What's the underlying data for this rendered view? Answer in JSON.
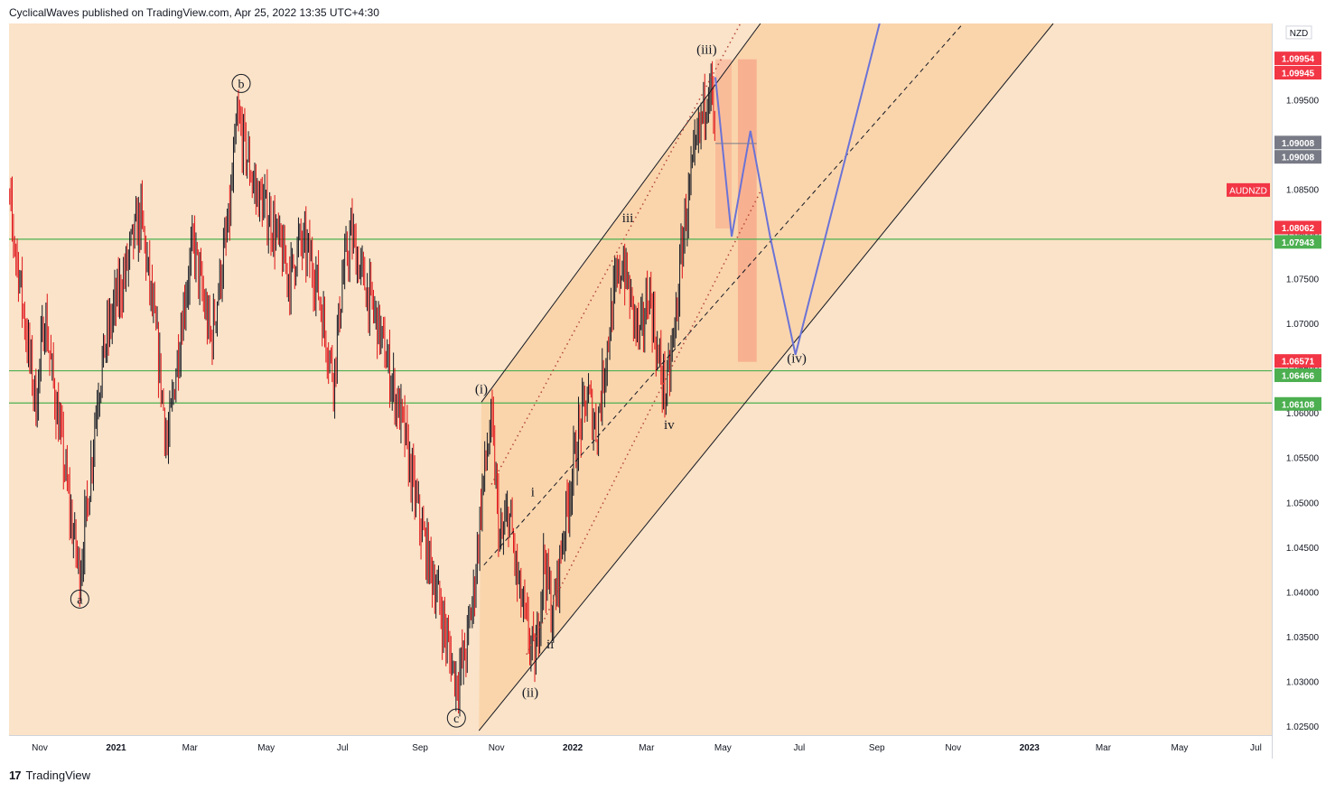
{
  "header": {
    "text": "CyclicalWaves published on TradingView.com, Apr 25, 2022 13:35 UTC+4:30"
  },
  "footer": {
    "logo": "17",
    "brand": "TradingView"
  },
  "colors": {
    "background": "#fae3c8",
    "channel_fill": "#f9d2a7",
    "box_fill": "#f7a88a",
    "candle_up": "#131722",
    "candle_down": "#e0151a",
    "level_line": "#4caf50",
    "projection_line": "#6b73d6",
    "red_tag": "#f23645",
    "green_tag": "#4caf50",
    "gray_tag": "#787b86"
  },
  "chart_data": {
    "type": "candlestick",
    "symbol": "AUDNZD",
    "currency": "NZD",
    "ylim": [
      1.024,
      1.1035
    ],
    "y_ticks": [
      1.025,
      1.03,
      1.035,
      1.04,
      1.045,
      1.05,
      1.055,
      1.06,
      1.065,
      1.07,
      1.075,
      1.08,
      1.085,
      1.09,
      1.095
    ],
    "y_tick_labels": [
      "1.02500",
      "1.03000",
      "1.03500",
      "1.04000",
      "1.04500",
      "1.05000",
      "1.05500",
      "1.06000",
      "1.06500",
      "1.07000",
      "1.07500",
      "1.08000",
      "1.08500",
      "1.09000",
      "1.09500"
    ],
    "x_ticks": [
      {
        "label": "Nov",
        "date": "2020-11-01"
      },
      {
        "label": "2021",
        "date": "2021-01-01"
      },
      {
        "label": "Mar",
        "date": "2021-03-01"
      },
      {
        "label": "May",
        "date": "2021-05-01"
      },
      {
        "label": "Jul",
        "date": "2021-07-01"
      },
      {
        "label": "Sep",
        "date": "2021-09-01"
      },
      {
        "label": "Nov",
        "date": "2021-11-01"
      },
      {
        "label": "2022",
        "date": "2022-01-01"
      },
      {
        "label": "Mar",
        "date": "2022-03-01"
      },
      {
        "label": "May",
        "date": "2022-05-01"
      },
      {
        "label": "Jul",
        "date": "2022-07-01"
      },
      {
        "label": "Sep",
        "date": "2022-09-01"
      },
      {
        "label": "Nov",
        "date": "2022-11-01"
      },
      {
        "label": "2023",
        "date": "2023-01-01"
      },
      {
        "label": "Mar",
        "date": "2023-03-01"
      },
      {
        "label": "May",
        "date": "2023-05-01"
      },
      {
        "label": "Jul",
        "date": "2023-07-01"
      }
    ],
    "price_path": [
      [
        "2020-10-01",
        1.089
      ],
      [
        "2020-10-08",
        1.083
      ],
      [
        "2020-10-15",
        1.076
      ],
      [
        "2020-10-22",
        1.068
      ],
      [
        "2020-10-29",
        1.061
      ],
      [
        "2020-11-05",
        1.071
      ],
      [
        "2020-11-12",
        1.063
      ],
      [
        "2020-11-19",
        1.056
      ],
      [
        "2020-11-26",
        1.048
      ],
      [
        "2020-12-03",
        1.042
      ],
      [
        "2020-12-10",
        1.051
      ],
      [
        "2020-12-17",
        1.062
      ],
      [
        "2020-12-24",
        1.068
      ],
      [
        "2020-12-31",
        1.072
      ],
      [
        "2021-01-07",
        1.075
      ],
      [
        "2021-01-14",
        1.079
      ],
      [
        "2021-01-21",
        1.082
      ],
      [
        "2021-01-28",
        1.074
      ],
      [
        "2021-02-04",
        1.066
      ],
      [
        "2021-02-11",
        1.056
      ],
      [
        "2021-02-18",
        1.065
      ],
      [
        "2021-02-25",
        1.073
      ],
      [
        "2021-03-04",
        1.079
      ],
      [
        "2021-03-11",
        1.073
      ],
      [
        "2021-03-18",
        1.068
      ],
      [
        "2021-03-25",
        1.075
      ],
      [
        "2021-04-01",
        1.081
      ],
      [
        "2021-04-08",
        1.093
      ],
      [
        "2021-04-15",
        1.089
      ],
      [
        "2021-04-22",
        1.085
      ],
      [
        "2021-04-29",
        1.083
      ],
      [
        "2021-05-06",
        1.081
      ],
      [
        "2021-05-13",
        1.078
      ],
      [
        "2021-05-20",
        1.075
      ],
      [
        "2021-05-27",
        1.079
      ],
      [
        "2021-06-03",
        1.078
      ],
      [
        "2021-06-10",
        1.075
      ],
      [
        "2021-06-17",
        1.069
      ],
      [
        "2021-06-24",
        1.064
      ],
      [
        "2021-07-01",
        1.075
      ],
      [
        "2021-07-08",
        1.08
      ],
      [
        "2021-07-15",
        1.076
      ],
      [
        "2021-07-22",
        1.073
      ],
      [
        "2021-07-29",
        1.07
      ],
      [
        "2021-08-05",
        1.066
      ],
      [
        "2021-08-12",
        1.062
      ],
      [
        "2021-08-19",
        1.058
      ],
      [
        "2021-08-26",
        1.052
      ],
      [
        "2021-09-02",
        1.047
      ],
      [
        "2021-09-09",
        1.043
      ],
      [
        "2021-09-16",
        1.039
      ],
      [
        "2021-09-23",
        1.034
      ],
      [
        "2021-09-30",
        1.03
      ],
      [
        "2021-10-07",
        1.033
      ],
      [
        "2021-10-14",
        1.04
      ],
      [
        "2021-10-21",
        1.052
      ],
      [
        "2021-10-28",
        1.059
      ],
      [
        "2021-11-04",
        1.045
      ],
      [
        "2021-11-11",
        1.049
      ],
      [
        "2021-11-18",
        1.041
      ],
      [
        "2021-11-25",
        1.036
      ],
      [
        "2021-12-02",
        1.032
      ],
      [
        "2021-12-09",
        1.044
      ],
      [
        "2021-12-16",
        1.037
      ],
      [
        "2021-12-23",
        1.045
      ],
      [
        "2021-12-30",
        1.052
      ],
      [
        "2022-01-06",
        1.058
      ],
      [
        "2022-01-13",
        1.062
      ],
      [
        "2022-01-20",
        1.058
      ],
      [
        "2022-01-27",
        1.066
      ],
      [
        "2022-02-03",
        1.073
      ],
      [
        "2022-02-10",
        1.077
      ],
      [
        "2022-02-17",
        1.072
      ],
      [
        "2022-02-24",
        1.068
      ],
      [
        "2022-03-03",
        1.074
      ],
      [
        "2022-03-10",
        1.066
      ],
      [
        "2022-03-17",
        1.062
      ],
      [
        "2022-03-24",
        1.07
      ],
      [
        "2022-03-31",
        1.081
      ],
      [
        "2022-04-07",
        1.087
      ],
      [
        "2022-04-14",
        1.093
      ],
      [
        "2022-04-21",
        1.098
      ],
      [
        "2022-04-25",
        1.089
      ]
    ],
    "horizontal_levels": [
      1.0794,
      1.0647,
      1.0611
    ],
    "projection_path": [
      [
        "2022-04-25",
        1.0975
      ],
      [
        "2022-05-08",
        1.0797
      ],
      [
        "2022-05-23",
        1.0915
      ],
      [
        "2022-06-08",
        1.0795
      ],
      [
        "2022-06-28",
        1.0665
      ],
      [
        "2022-09-05",
        1.1045
      ]
    ],
    "channel": {
      "lower_line": [
        [
          "2021-10-18",
          1.0245
        ],
        [
          "2023-01-20",
          1.1035
        ]
      ],
      "upper_line": [
        [
          "2021-10-20",
          1.0612
        ],
        [
          "2022-05-31",
          1.1035
        ]
      ],
      "mid_line_dashed": [
        [
          "2021-10-22",
          1.043
        ],
        [
          "2022-11-09",
          1.1035
        ]
      ]
    },
    "dotted_lines": [
      {
        "from": [
          "2021-10-28",
          1.052
        ],
        "to": [
          "2022-05-15",
          1.1035
        ]
      },
      {
        "from": [
          "2021-11-25",
          1.033
        ],
        "to": [
          "2022-06-01",
          1.085
        ]
      }
    ],
    "wave_labels": [
      {
        "text": "a",
        "date": "2020-12-03",
        "price": 1.0392,
        "circled": true
      },
      {
        "text": "b",
        "date": "2021-04-11",
        "price": 1.0968,
        "circled": true
      },
      {
        "text": "c",
        "date": "2021-09-30",
        "price": 1.0259,
        "circled": true
      },
      {
        "text": "(i)",
        "date": "2021-10-20",
        "price": 1.0627,
        "circled": false
      },
      {
        "text": "(ii)",
        "date": "2021-11-28",
        "price": 1.0288,
        "circled": false
      },
      {
        "text": "i",
        "date": "2021-11-30",
        "price": 1.0512,
        "circled": false
      },
      {
        "text": "ii",
        "date": "2021-12-14",
        "price": 1.0342,
        "circled": false
      },
      {
        "text": "iii",
        "date": "2022-02-14",
        "price": 1.0818,
        "circled": false
      },
      {
        "text": "iv",
        "date": "2022-03-19",
        "price": 1.0587,
        "circled": false
      },
      {
        "text": "(iii)",
        "date": "2022-04-18",
        "price": 1.1006,
        "circled": false
      },
      {
        "text": "(iv)",
        "date": "2022-06-29",
        "price": 1.0661,
        "circled": false
      }
    ],
    "price_tags": [
      {
        "text": "NZD",
        "price": 1.1025,
        "style": "plain"
      },
      {
        "text": "1.09954",
        "price": 1.0996,
        "style": "red"
      },
      {
        "text": "1.09945",
        "price": 1.098,
        "style": "red"
      },
      {
        "text": "1.09008",
        "price": 1.0902,
        "style": "gray"
      },
      {
        "text": "1.09008",
        "price": 1.0886,
        "style": "gray"
      },
      {
        "text": "1.08062",
        "price": 1.0807,
        "style": "red"
      },
      {
        "text": "1.07943",
        "price": 1.0791,
        "style": "green"
      },
      {
        "text": "1.06571",
        "price": 1.0658,
        "style": "red"
      },
      {
        "text": "1.06466",
        "price": 1.0642,
        "style": "green"
      },
      {
        "text": "1.06108",
        "price": 1.061,
        "style": "green"
      }
    ],
    "symbol_tag": {
      "text": "AUDNZD",
      "price": 1.0849
    }
  }
}
